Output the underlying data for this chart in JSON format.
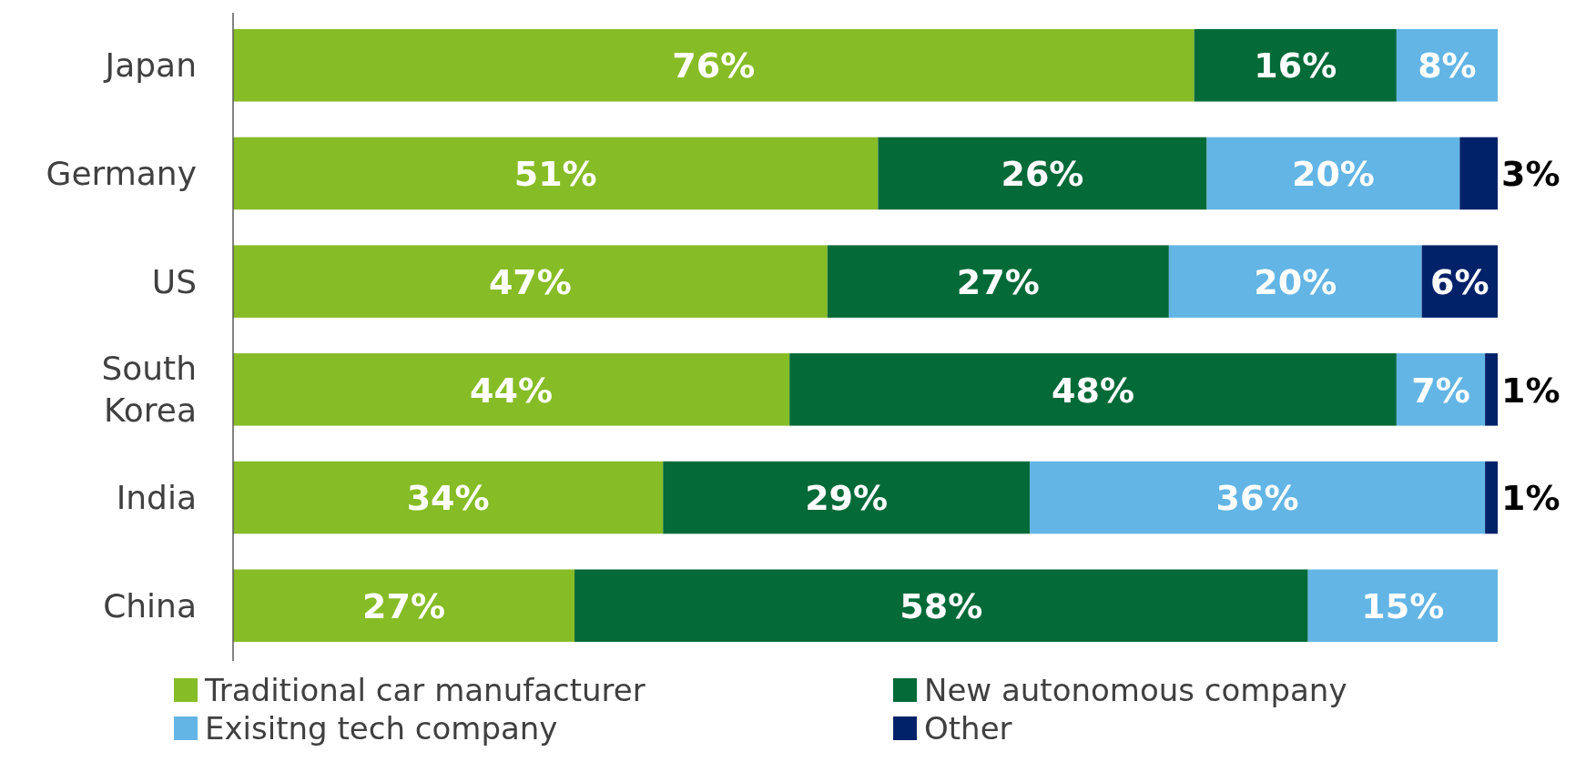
{
  "chart_data": {
    "type": "bar",
    "orientation": "horizontal",
    "stacked": true,
    "categories": [
      "Japan",
      "Germany",
      "US",
      "South Korea",
      "India",
      "China"
    ],
    "series": [
      {
        "name": "Traditional car manufacturer",
        "color": "#86bc25",
        "values": [
          76,
          51,
          47,
          44,
          34,
          27
        ],
        "value_labels": [
          "76%",
          "51%",
          "47%",
          "44%",
          "34%",
          "27%"
        ]
      },
      {
        "name": "New autonomous company",
        "color": "#046a38",
        "values": [
          16,
          26,
          27,
          48,
          29,
          58
        ],
        "value_labels": [
          "16%",
          "26%",
          "27%",
          "48%",
          "29%",
          "58%"
        ]
      },
      {
        "name": "Exisitng tech company",
        "color": "#62b5e5",
        "values": [
          8,
          20,
          20,
          7,
          36,
          15
        ],
        "value_labels": [
          "8%",
          "20%",
          "20%",
          "7%",
          "36%",
          "15%"
        ]
      },
      {
        "name": "Other",
        "color": "#012169",
        "values": [
          null,
          3,
          6,
          1,
          1,
          null
        ],
        "value_labels": [
          null,
          "3%",
          "6%",
          "1%",
          "1%",
          null
        ]
      }
    ],
    "tick_labels": "y",
    "legend": "bottom"
  }
}
